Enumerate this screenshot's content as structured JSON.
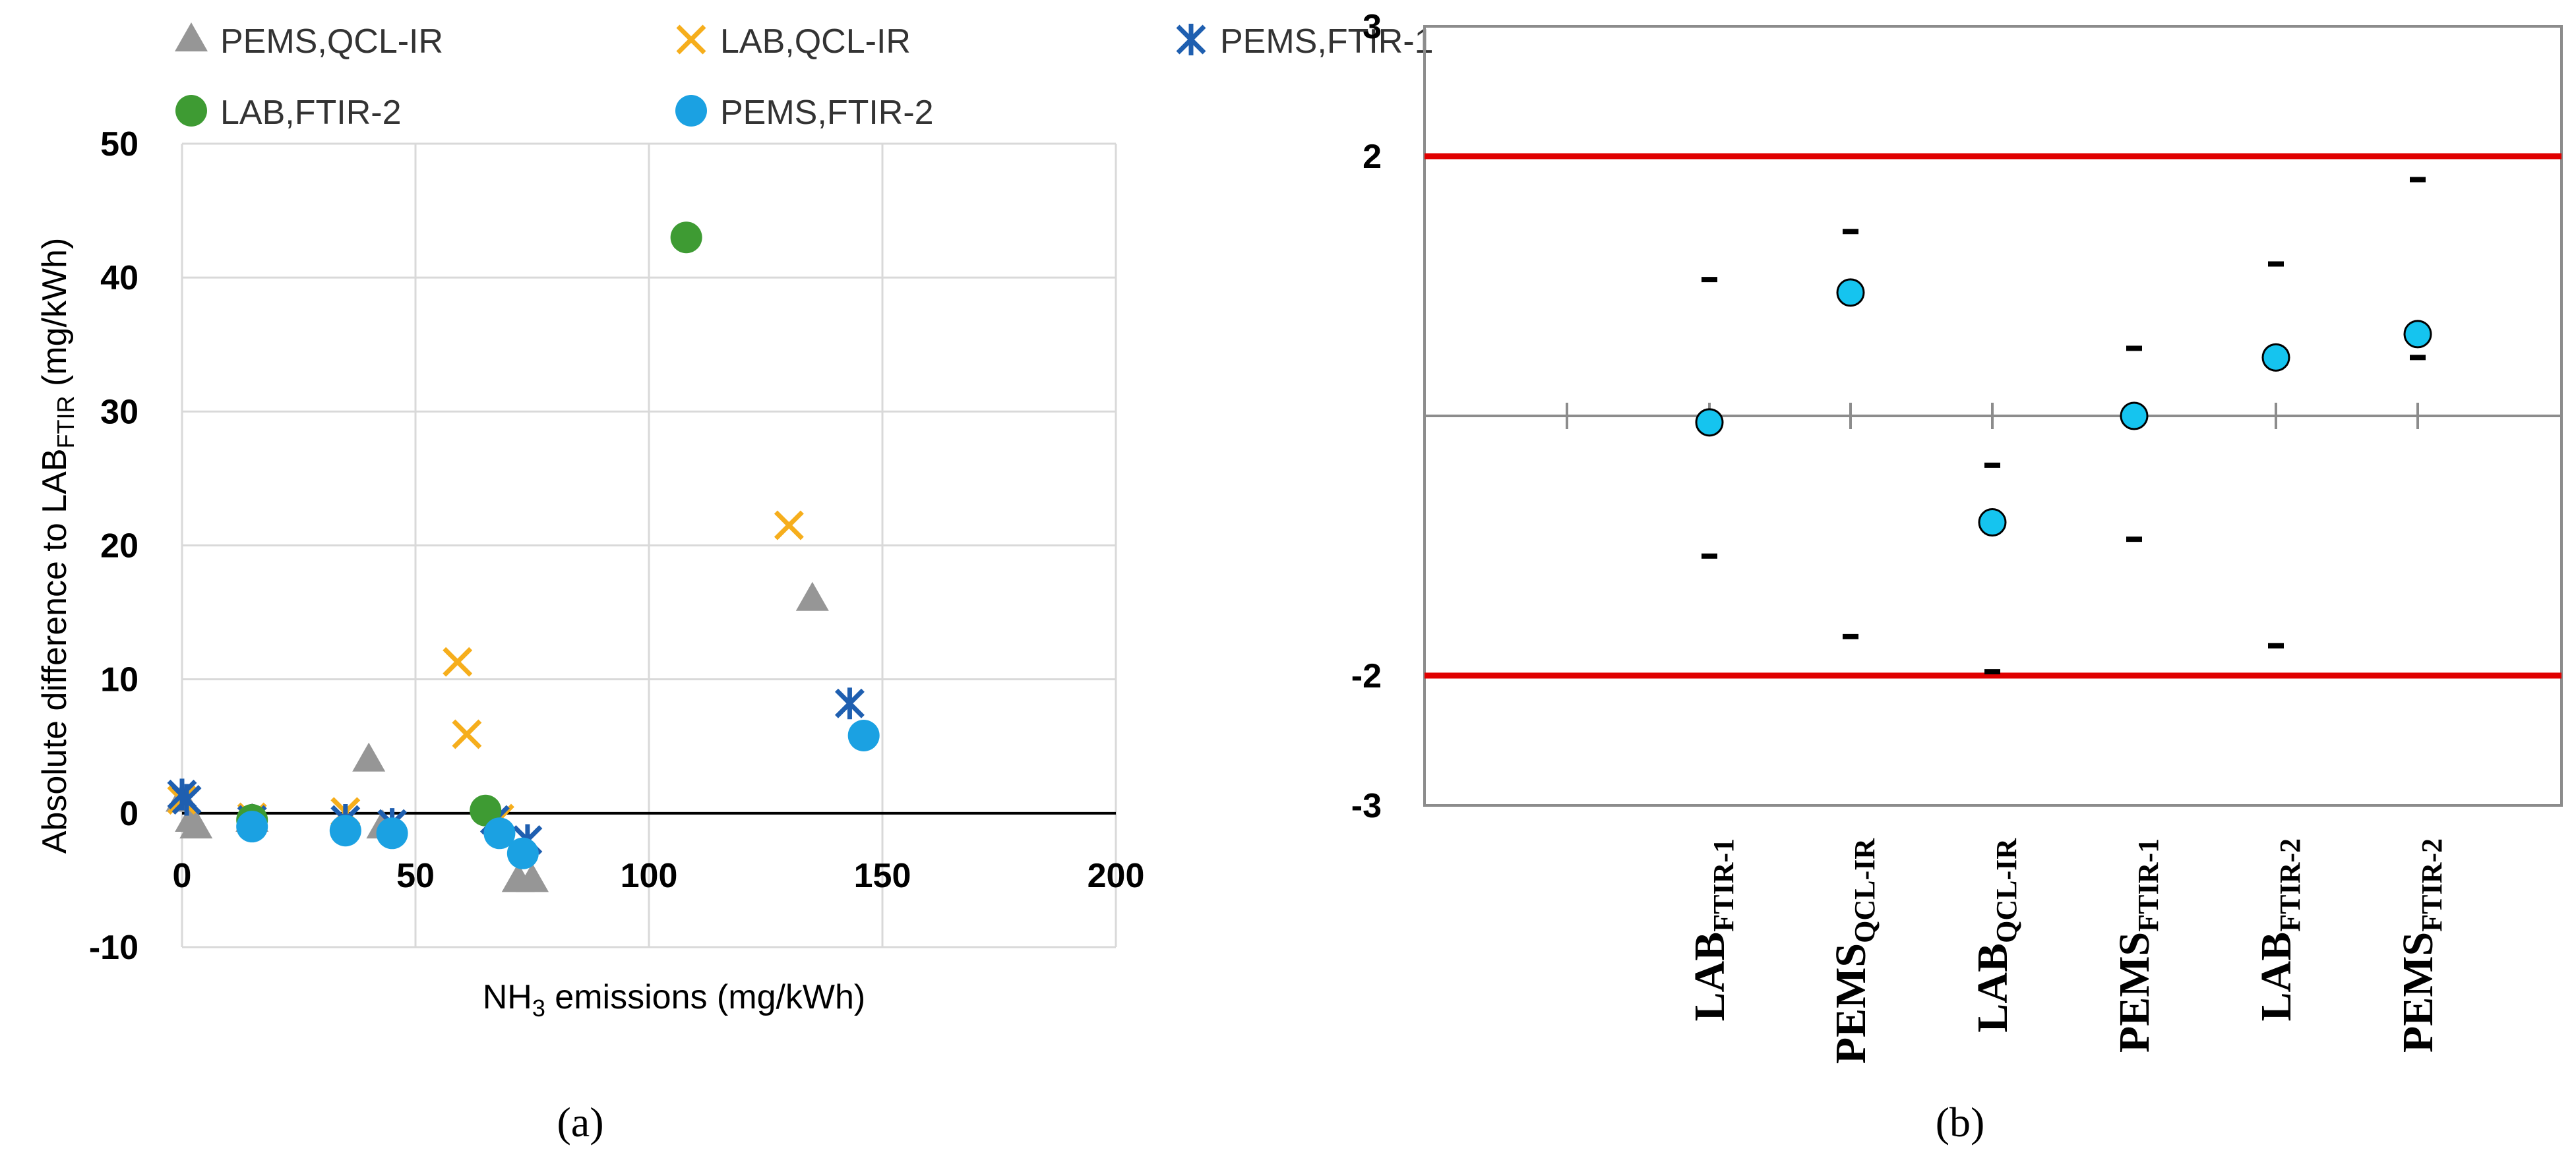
{
  "colors": {
    "pems_qcl_ir": "#969696",
    "lab_qcl_ir": "#f6ae1c",
    "pems_ftir_1": "#1f5fb0",
    "lab_ftir_2": "#3e9b33",
    "pems_ftir_2": "#1ba1e2",
    "zscore_point": "#15c4ef",
    "limit_line": "#e00000",
    "grid": "#d9d9d9"
  },
  "chart_data": [
    {
      "type": "scatter",
      "panel_label": "(a)",
      "ylabel_main": "Absolute difference to LAB",
      "ylabel_sub": "FTIR",
      "ylabel_unit": "(mg/kWh)",
      "xlabel_pre": "NH",
      "xlabel_sub": "3",
      "xlabel_post": " emissions (mg/kWh)",
      "xlim": [
        0,
        200
      ],
      "ylim": [
        -10,
        50
      ],
      "xticks": [
        0,
        50,
        100,
        150,
        200
      ],
      "yticks": [
        -10,
        0,
        10,
        20,
        30,
        40,
        50
      ],
      "grid": true,
      "legend_position": "top",
      "series": [
        {
          "name": "PEMS,QCL-IR",
          "marker": "triangle",
          "color_key": "pems_qcl_ir",
          "points": [
            [
              0,
              1
            ],
            [
              2,
              -0.5
            ],
            [
              3,
              -1
            ],
            [
              15,
              -0.5
            ],
            [
              40,
              4
            ],
            [
              43,
              -1
            ],
            [
              72,
              -5
            ],
            [
              75,
              -5
            ],
            [
              135,
              16
            ]
          ]
        },
        {
          "name": "LAB,QCL-IR",
          "marker": "x",
          "color_key": "lab_qcl_ir",
          "points": [
            [
              0,
              1
            ],
            [
              15,
              -0.3
            ],
            [
              35,
              0.1
            ],
            [
              59,
              11.3
            ],
            [
              61,
              5.9
            ],
            [
              68,
              -0.4
            ],
            [
              130,
              21.5
            ]
          ]
        },
        {
          "name": "PEMS,FTIR-1",
          "marker": "asterisk",
          "color_key": "pems_ftir_1",
          "points": [
            [
              0,
              1.4
            ],
            [
              1,
              1
            ],
            [
              15,
              -0.5
            ],
            [
              35,
              -0.5
            ],
            [
              45,
              -0.8
            ],
            [
              67,
              -0.5
            ],
            [
              74,
              -2
            ],
            [
              143,
              8.2
            ]
          ]
        },
        {
          "name": "LAB,FTIR-2",
          "marker": "circle",
          "color_key": "lab_ftir_2",
          "points": [
            [
              15,
              -0.5
            ],
            [
              65,
              0.2
            ],
            [
              108,
              43
            ]
          ]
        },
        {
          "name": "PEMS,FTIR-2",
          "marker": "circle",
          "color_key": "pems_ftir_2",
          "points": [
            [
              15,
              -1
            ],
            [
              35,
              -1.3
            ],
            [
              45,
              -1.5
            ],
            [
              68,
              -1.5
            ],
            [
              73,
              -3
            ],
            [
              146,
              5.8
            ]
          ]
        }
      ]
    },
    {
      "type": "scatter",
      "panel_label": "(b)",
      "ylim": [
        -3,
        3
      ],
      "yticks": [
        -3,
        -2,
        2,
        3
      ],
      "limit_lines": [
        2,
        -2
      ],
      "categories": [
        {
          "main": "LAB",
          "sub": "FTIR-1"
        },
        {
          "main": "PEMS",
          "sub": "QCL-IR"
        },
        {
          "main": "LAB",
          "sub": "QCL-IR"
        },
        {
          "main": "PEMS",
          "sub": "FTIR-1"
        },
        {
          "main": "LAB",
          "sub": "FTIR-2"
        },
        {
          "main": "PEMS",
          "sub": "FTIR-2"
        }
      ],
      "values": [
        -0.05,
        0.95,
        -0.82,
        0.0,
        0.45,
        0.63
      ],
      "upper": [
        1.05,
        1.42,
        -0.38,
        0.52,
        1.17,
        1.82
      ],
      "lower": [
        -1.08,
        -1.7,
        -1.97,
        -0.95,
        -1.77,
        0.45
      ]
    }
  ]
}
